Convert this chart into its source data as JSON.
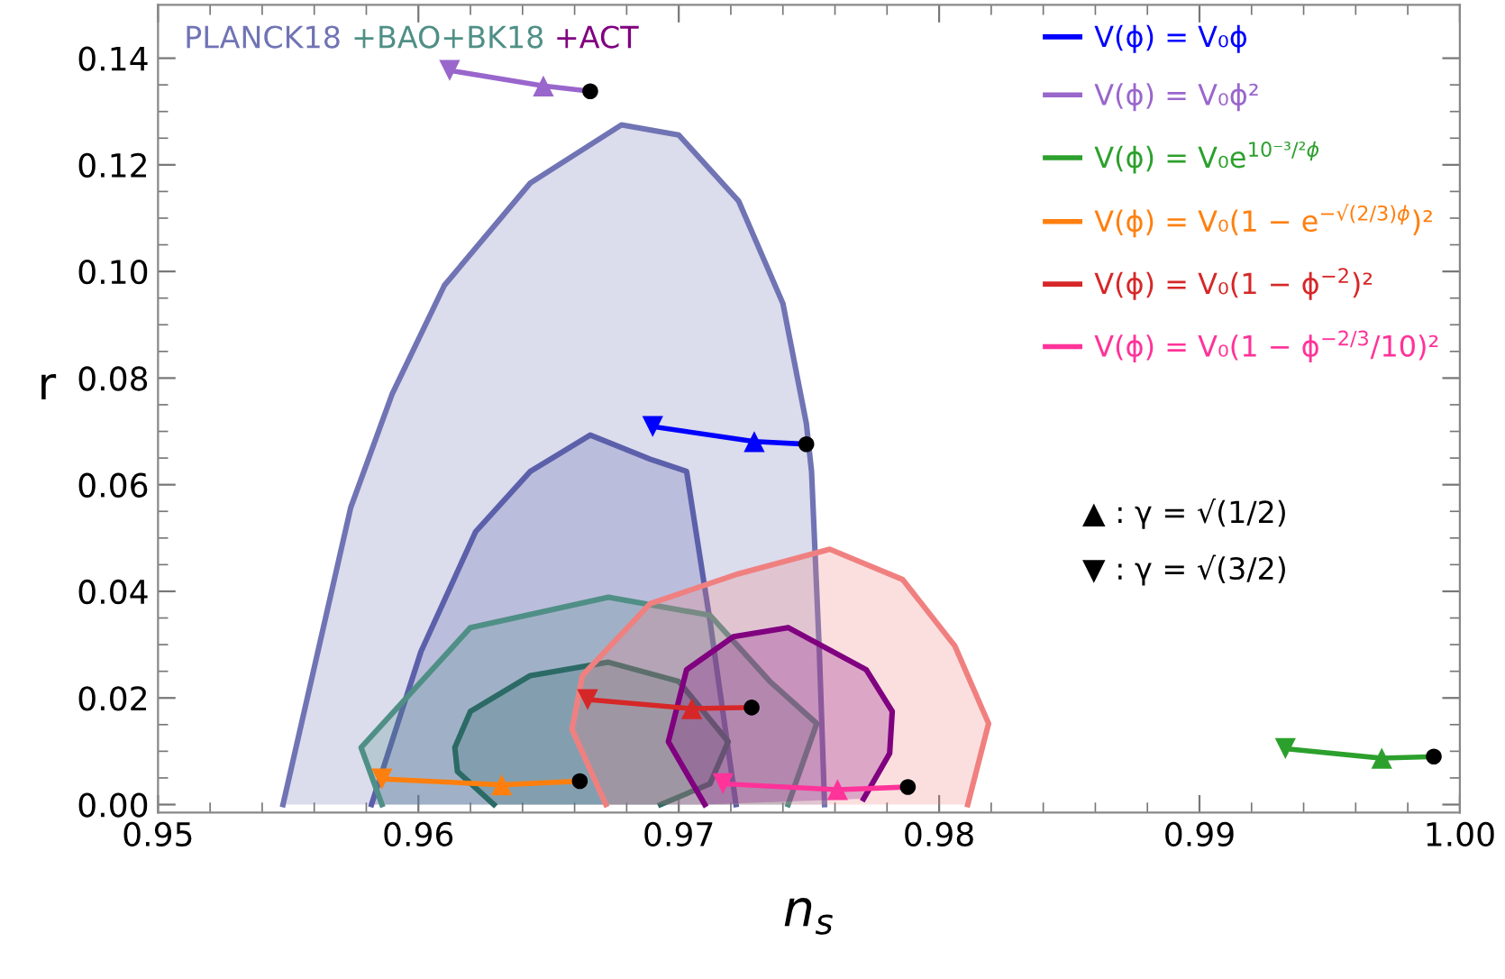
{
  "chart_data": {
    "type": "line",
    "xlabel": "n$_{s}$",
    "ylabel": "r",
    "xlim": [
      0.95,
      1.0
    ],
    "ylim": [
      -0.0015,
      0.15
    ],
    "xticks": [
      0.95,
      0.96,
      0.97,
      0.98,
      0.99,
      {
        "value": 1.0,
        "label": "1.00"
      }
    ],
    "yticks": [
      {
        "value": 0.0,
        "label": "0.00"
      },
      0.02,
      0.04,
      0.06,
      0.08,
      {
        "value": 0.1,
        "label": "0.10"
      },
      0.12,
      0.14
    ],
    "grid": false,
    "legend": "top right",
    "annotations": [
      "▲ : γ = √(1/2)",
      "▼ : γ = √(3/2)"
    ],
    "series": [
      {
        "type": "area",
        "name": "PLANCK18",
        "color": "#7074b4",
        "x": [
          0.9548,
          0.9574,
          0.959,
          0.961,
          0.9643,
          0.9678,
          0.97,
          0.9723,
          0.974,
          0.9749,
          0.9751,
          0.9754,
          0.9756
        ],
        "values": [
          0.0,
          0.0557,
          0.0771,
          0.0974,
          0.1166,
          0.1275,
          0.1256,
          0.1132,
          0.094,
          0.0715,
          0.0625,
          0.0287,
          0.0
        ]
      },
      {
        "type": "area",
        "color": "#5c60aa",
        "x": [
          0.9582,
          0.9601,
          0.9622,
          0.9643,
          0.9666,
          0.9689,
          0.9703,
          0.9712,
          0.9722
        ],
        "values": [
          0.0,
          0.0287,
          0.0512,
          0.0625,
          0.0693,
          0.0648,
          0.0625,
          0.0344,
          0.0
        ]
      },
      {
        "type": "area",
        "name": "+BAO+BK18",
        "color": "#4f8f86",
        "x": [
          0.9586,
          0.9578,
          0.962,
          0.9673,
          0.9712,
          0.9735,
          0.9753,
          0.9742
        ],
        "values": [
          0.0,
          0.0107,
          0.0332,
          0.0389,
          0.0355,
          0.0231,
          0.0152,
          0.0
        ]
      },
      {
        "type": "area",
        "color": "#2c6a66",
        "x": [
          0.9629,
          0.9615,
          0.9614,
          0.962,
          0.9643,
          0.9673,
          0.97,
          0.9719,
          0.9712,
          0.9693
        ],
        "values": [
          0.0,
          0.0062,
          0.0107,
          0.0175,
          0.0242,
          0.0267,
          0.0231,
          0.0118,
          0.0039,
          0.0
        ]
      },
      {
        "type": "area",
        "color": "#f08080",
        "x": [
          0.9672,
          0.9659,
          0.9663,
          0.9689,
          0.9723,
          0.9758,
          0.9786,
          0.9806,
          0.9819,
          0.9811
        ],
        "values": [
          0.0,
          0.0141,
          0.0242,
          0.0377,
          0.0433,
          0.0479,
          0.0422,
          0.0298,
          0.0152,
          0.0
        ]
      },
      {
        "type": "area",
        "name": "+ACT",
        "color": "#800080",
        "x": [
          0.971,
          0.9696,
          0.9703,
          0.9721,
          0.9742,
          0.9772,
          0.9782,
          0.9781,
          0.9771
        ],
        "values": [
          0.0,
          0.0118,
          0.0253,
          0.0315,
          0.0332,
          0.0253,
          0.0175,
          0.0096,
          0.0011
        ]
      },
      {
        "name": "V(ϕ) = V₀ϕ",
        "color": "#0000ff",
        "x": [
          0.969,
          0.9729,
          0.9749
        ],
        "values": [
          0.0709,
          0.0681,
          0.0676
        ]
      },
      {
        "name": "V(ϕ) = V₀ϕ²",
        "color": "#9966cc",
        "x": [
          0.9612,
          0.9648,
          0.9666
        ],
        "values": [
          0.1377,
          0.1348,
          0.1338
        ]
      },
      {
        "name": "V(ϕ) = V₀e$^{10⁻³/²ϕ}$",
        "color": "#2ca02c",
        "x": [
          0.9933,
          0.997,
          0.999
        ],
        "values": [
          0.0105,
          0.0087,
          0.009
        ]
      },
      {
        "name": "V(ϕ) = V₀(1 − e$^{−√(2/3)ϕ}$)²",
        "color": "#ff7f0e",
        "x": [
          0.9586,
          0.9632,
          0.9662
        ],
        "values": [
          0.0048,
          0.0037,
          0.0044
        ]
      },
      {
        "name": "V(ϕ) = V₀(1 − ϕ$^{−2}$)²",
        "color": "#d62728",
        "x": [
          0.9665,
          0.9705,
          0.9728
        ],
        "values": [
          0.0197,
          0.018,
          0.0182
        ]
      },
      {
        "name": "V(ϕ) = V₀(1 − ϕ$^{−2/3}$/10)²",
        "color": "#ff3399",
        "x": [
          0.9717,
          0.9761,
          0.9788
        ],
        "values": [
          0.0039,
          0.0028,
          0.0033
        ]
      },
      {
        "type": "scatter",
        "marker": "triangle",
        "colors": [
          "#0000ff",
          "#9966cc",
          "#2ca02c",
          "#ff7f0e",
          "#d62728",
          "#ff3399"
        ],
        "x": [
          0.9729,
          0.9648,
          0.997,
          0.9632,
          0.9705,
          0.9761
        ],
        "values": [
          0.0681,
          0.1348,
          0.0087,
          0.0037,
          0.018,
          0.0028
        ]
      },
      {
        "type": "scatter",
        "marker": "triangle-down",
        "colors": [
          "#0000ff",
          "#9966cc",
          "#2ca02c",
          "#ff7f0e",
          "#d62728",
          "#ff3399"
        ],
        "x": [
          0.969,
          0.9612,
          0.9933,
          0.9586,
          0.9665,
          0.9717
        ],
        "values": [
          0.0709,
          0.1377,
          0.0105,
          0.0048,
          0.0197,
          0.0039
        ]
      },
      {
        "type": "scatter",
        "marker": "circle",
        "color": "#000000",
        "x": [
          0.9749,
          0.9666,
          0.999,
          0.9662,
          0.9728,
          0.9788
        ],
        "values": [
          0.0676,
          0.1338,
          0.009,
          0.0044,
          0.0182,
          0.0033
        ]
      }
    ]
  }
}
